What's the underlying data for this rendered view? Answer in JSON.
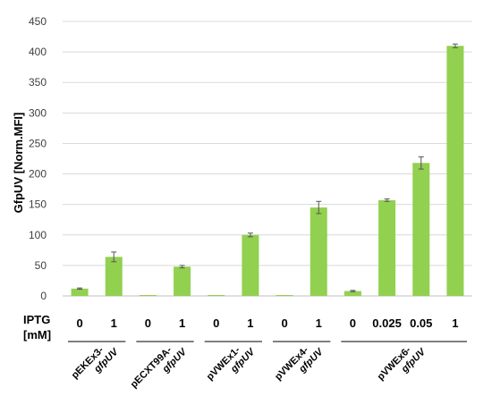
{
  "chart_data": {
    "type": "bar",
    "title": "",
    "ylabel": "GfpUV [Norm.MFI]",
    "xlabel": "",
    "ylim": [
      0,
      450
    ],
    "yticks": [
      0,
      50,
      100,
      150,
      200,
      250,
      300,
      350,
      400,
      450
    ],
    "grid": true,
    "row_label": "IPTG [mM]",
    "categories": [
      "0",
      "1",
      "0",
      "1",
      "0",
      "1",
      "0",
      "1",
      "0",
      "0.025",
      "0.05",
      "1"
    ],
    "values": [
      12,
      64,
      1,
      48,
      1,
      100,
      1,
      145,
      8,
      157,
      218,
      410
    ],
    "errors": [
      1,
      8,
      0.5,
      2,
      0.5,
      3,
      0.5,
      10,
      1,
      2,
      10,
      3
    ],
    "groups": [
      {
        "label": "pEKEx3-",
        "label2": "gfpUV",
        "start": 0,
        "end": 1
      },
      {
        "label": "pECXT99A-",
        "label2": "gfpUV",
        "start": 2,
        "end": 3
      },
      {
        "label": "pVWEx1-",
        "label2": "gfpUV",
        "start": 4,
        "end": 5
      },
      {
        "label": "pVWEx4-",
        "label2": "gfpUV",
        "start": 6,
        "end": 7
      },
      {
        "label": "pVWEx6-",
        "label2": "gfpUV",
        "start": 8,
        "end": 11
      }
    ],
    "bar_color": "#92d050"
  }
}
